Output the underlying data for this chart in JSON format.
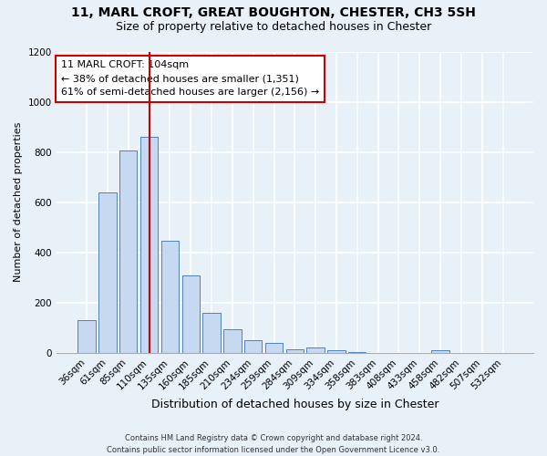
{
  "title1": "11, MARL CROFT, GREAT BOUGHTON, CHESTER, CH3 5SH",
  "title2": "Size of property relative to detached houses in Chester",
  "xlabel": "Distribution of detached houses by size in Chester",
  "ylabel": "Number of detached properties",
  "categories": [
    "36sqm",
    "61sqm",
    "85sqm",
    "110sqm",
    "135sqm",
    "160sqm",
    "185sqm",
    "210sqm",
    "234sqm",
    "259sqm",
    "284sqm",
    "309sqm",
    "334sqm",
    "358sqm",
    "383sqm",
    "408sqm",
    "433sqm",
    "458sqm",
    "482sqm",
    "507sqm",
    "532sqm"
  ],
  "values": [
    130,
    640,
    805,
    860,
    445,
    310,
    160,
    95,
    50,
    40,
    15,
    20,
    10,
    5,
    0,
    0,
    0,
    10,
    0,
    0,
    0
  ],
  "bar_color": "#c6d9f1",
  "bar_edgecolor": "#4f81bd",
  "vline_color": "#cc0000",
  "vline_pos": 3.0,
  "annotation_title": "11 MARL CROFT: 104sqm",
  "annotation_line1": "← 38% of detached houses are smaller (1,351)",
  "annotation_line2": "61% of semi-detached houses are larger (2,156) →",
  "annotation_box_facecolor": "#ffffff",
  "annotation_box_edgecolor": "#cc0000",
  "ylim": [
    0,
    1200
  ],
  "yticks": [
    0,
    200,
    400,
    600,
    800,
    1000,
    1200
  ],
  "footer1": "Contains HM Land Registry data © Crown copyright and database right 2024.",
  "footer2": "Contains public sector information licensed under the Open Government Licence v3.0.",
  "bg_color": "#e8f0f8",
  "grid_color": "#ffffff",
  "title1_fontsize": 10,
  "title2_fontsize": 9,
  "ylabel_fontsize": 8,
  "xlabel_fontsize": 9,
  "tick_fontsize": 7.5,
  "annotation_fontsize": 8,
  "footer_fontsize": 6
}
